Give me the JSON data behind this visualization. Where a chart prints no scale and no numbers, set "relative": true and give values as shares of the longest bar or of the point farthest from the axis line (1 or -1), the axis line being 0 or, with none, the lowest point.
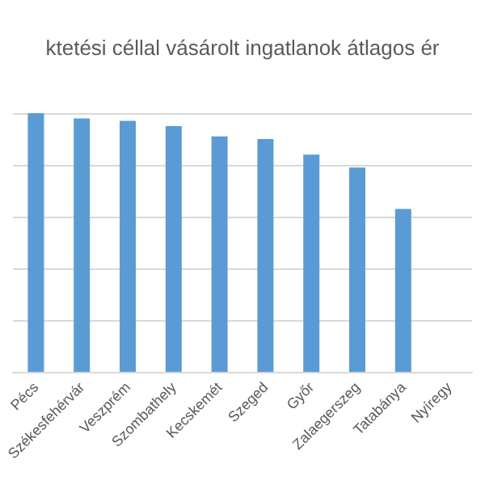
{
  "chart_data": {
    "type": "bar",
    "title": "ktetési céllal vásárolt ingatlanok átlagos ér",
    "categories": [
      "Pécs",
      "Székesfehérvár",
      "Veszprém",
      "Szombathely",
      "Kecskemét",
      "Szeged",
      "Győr",
      "Zalaegerszeg",
      "Tatabánya",
      "Nyíregy"
    ],
    "values": [
      1,
      0.98,
      0.97,
      0.95,
      0.91,
      0.9,
      0.84,
      0.79,
      0.63,
      null
    ],
    "color": "#5b9bd5",
    "relative": true,
    "grid": true
  }
}
